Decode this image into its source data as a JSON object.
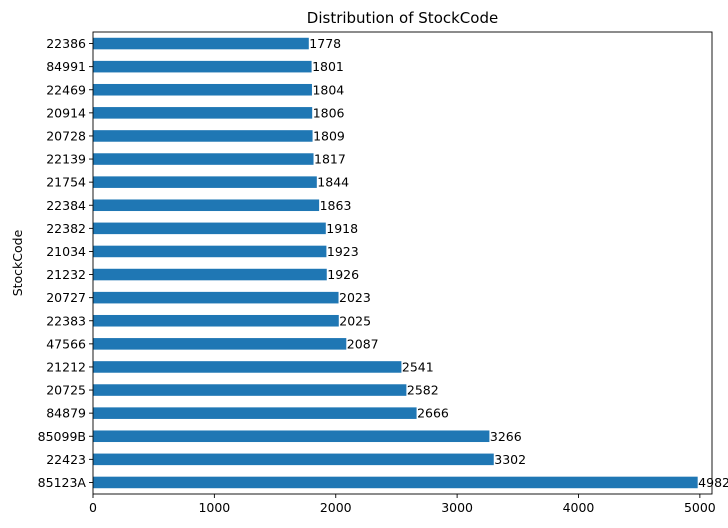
{
  "chart_data": {
    "type": "bar",
    "orientation": "horizontal",
    "title": "Distribution of StockCode",
    "xlabel": "",
    "ylabel": "StockCode",
    "xlim": [
      0,
      5100
    ],
    "x_ticks": [
      0,
      1000,
      2000,
      3000,
      4000,
      5000
    ],
    "grid": false,
    "bar_color": "#1f77b4",
    "categories": [
      "85123A",
      "22423",
      "85099B",
      "84879",
      "20725",
      "21212",
      "47566",
      "22383",
      "20727",
      "21232",
      "21034",
      "22382",
      "22384",
      "21754",
      "22139",
      "20728",
      "20914",
      "22469",
      "84991",
      "22386"
    ],
    "values": [
      4982,
      3302,
      3266,
      2666,
      2582,
      2541,
      2087,
      2025,
      2023,
      1926,
      1923,
      1918,
      1863,
      1844,
      1817,
      1809,
      1806,
      1804,
      1801,
      1778
    ]
  }
}
